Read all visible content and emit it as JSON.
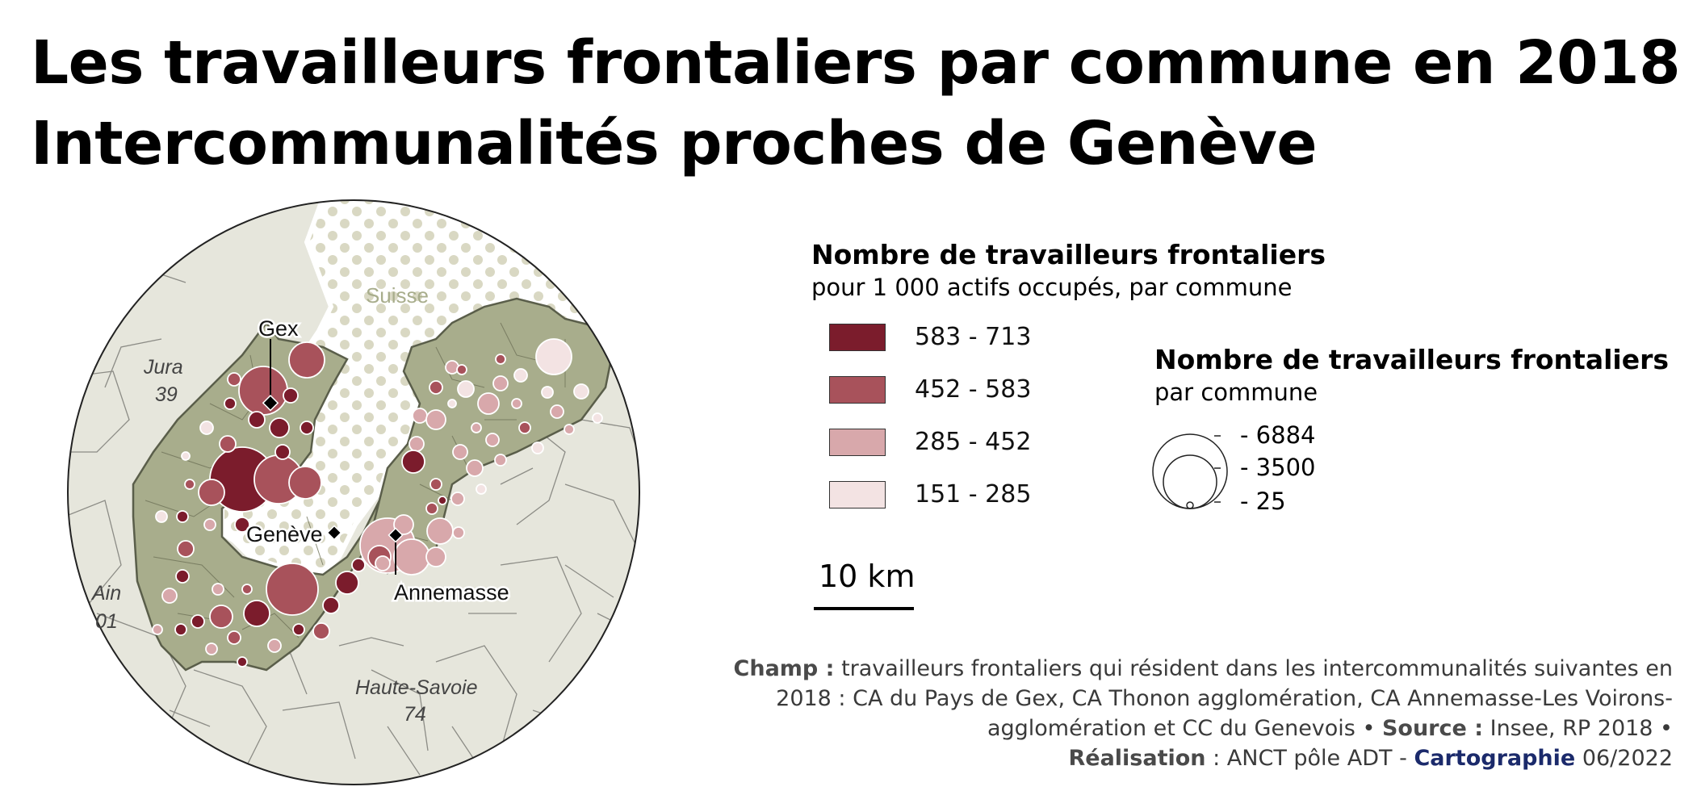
{
  "title": {
    "line1": "Les travailleurs frontaliers par commune en 2018 :",
    "line2": "Intercommunalités proches de Genève"
  },
  "map": {
    "labels": {
      "suisse": "Suisse",
      "jura": "Jura",
      "jura_code": "39",
      "ain": "Ain",
      "ain_code": "01",
      "haute_savoie": "Haute-Savoie",
      "haute_savoie_code": "74",
      "gex": "Gex",
      "geneve": "Genève",
      "annemasse": "Annemasse"
    },
    "colors": {
      "class_583_713": "#7b1c2c",
      "class_452_583": "#a8525b",
      "class_285_452": "#d8a8ab",
      "class_151_285": "#f3e3e3",
      "intercommunalite_fill": "#a8ad8c",
      "other_communes_fill": "#e6e6dc",
      "suisse_dots": "#d9d8c3"
    }
  },
  "legend_choropleth": {
    "title": "Nombre de travailleurs frontaliers",
    "subtitle": "pour 1 000 actifs occupés, par commune",
    "classes": [
      {
        "label": "583 - 713",
        "color": "#7b1c2c"
      },
      {
        "label": "452 - 583",
        "color": "#a8525b"
      },
      {
        "label": "285 - 452",
        "color": "#d8a8ab"
      },
      {
        "label": "151 - 285",
        "color": "#f3e3e3"
      }
    ]
  },
  "legend_proportional": {
    "title": "Nombre de travailleurs frontaliers",
    "subtitle": "par commune",
    "values": [
      {
        "label": "- 6884",
        "value": 6884
      },
      {
        "label": "- 3500",
        "value": 3500
      },
      {
        "label": "- 25",
        "value": 25
      }
    ]
  },
  "scale": {
    "label": "10 km"
  },
  "notes": {
    "champ_label": "Champ :",
    "champ_text": "travailleurs frontaliers qui résident dans les intercommunalités suivantes en 2018 : CA du Pays de Gex, CA Thonon agglomération, CA Annemasse-Les Voirons-agglomération et CC du Genevois •",
    "source_label": "Source :",
    "source_text": "Insee, RP 2018 •",
    "realisation_label": "Réalisation",
    "realisation_text": ": ANCT pôle ADT -",
    "cartographie_label": "Cartographie",
    "date": "06/2022"
  }
}
